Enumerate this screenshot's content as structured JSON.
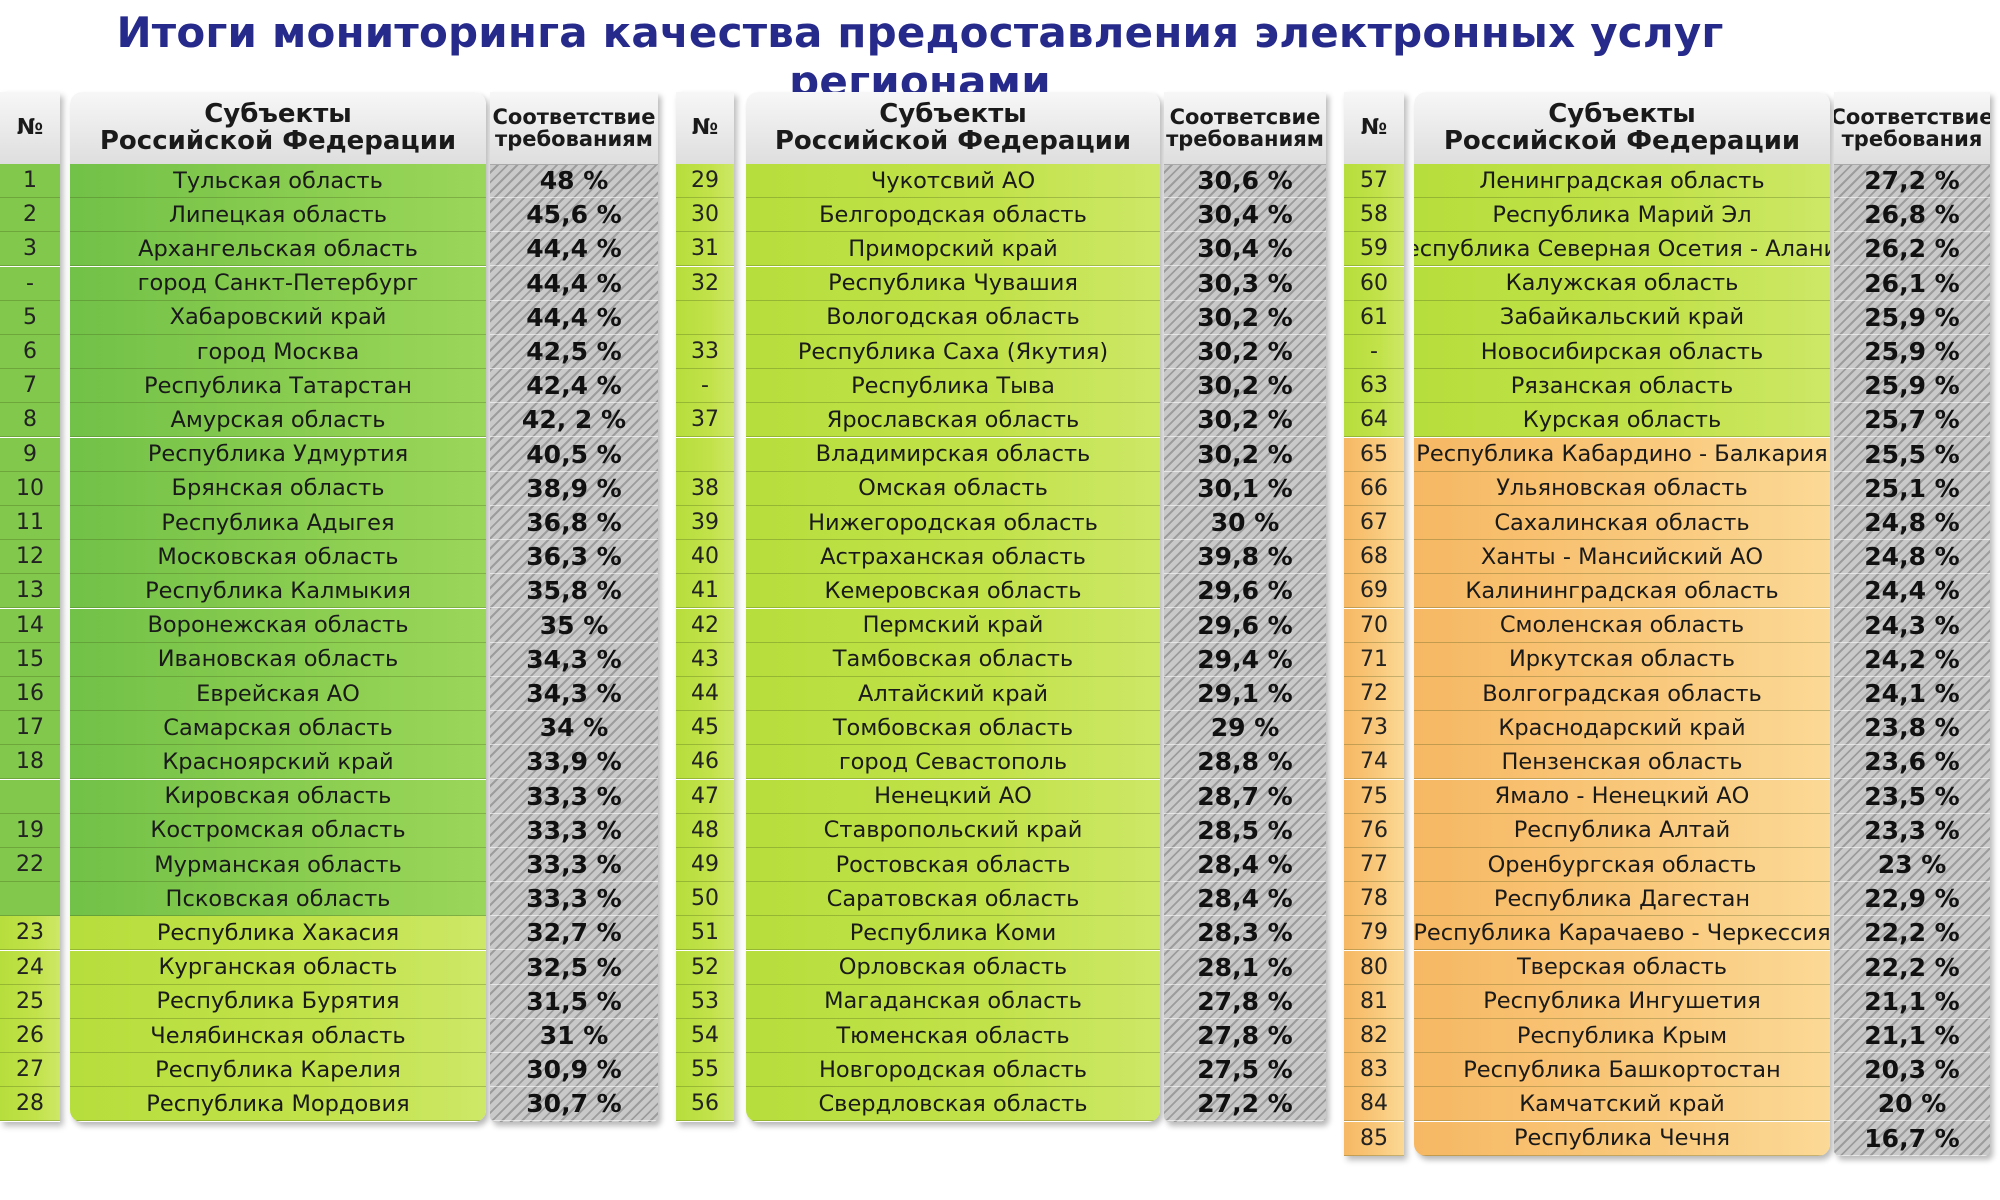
{
  "title": "Итоги мониторинга качества предоставления электронных услуг регионами",
  "headers": {
    "number": "№",
    "subject_line1": "Субъекты",
    "subject_line2": "Российской Федерации",
    "compliance_1": [
      "Соответствие",
      "требованиям"
    ],
    "compliance_2": [
      "Соответсвие",
      "требованиям"
    ],
    "compliance_3": [
      "Соответствие",
      "требования"
    ]
  },
  "columns": [
    {
      "rows": [
        {
          "num": "1",
          "name": "Тульская область",
          "pct": "48 %",
          "group": "green"
        },
        {
          "num": "2",
          "name": "Липецкая область",
          "pct": "45,6 %",
          "group": "green"
        },
        {
          "num": "3",
          "name": "Архангельская область",
          "pct": "44,4 %",
          "group": "green"
        },
        {
          "num": "-",
          "name": "город Санкт-Петербург",
          "pct": "44,4 %",
          "group": "green"
        },
        {
          "num": "5",
          "name": "Хабаровский край",
          "pct": "44,4 %",
          "group": "green"
        },
        {
          "num": "6",
          "name": "город Москва",
          "pct": "42,5 %",
          "group": "green"
        },
        {
          "num": "7",
          "name": "Республика Татарстан",
          "pct": "42,4 %",
          "group": "green"
        },
        {
          "num": "8",
          "name": "Амурская область",
          "pct": "42, 2 %",
          "group": "green"
        },
        {
          "num": "9",
          "name": "Республика Удмуртия",
          "pct": "40,5 %",
          "group": "green"
        },
        {
          "num": "10",
          "name": "Брянская область",
          "pct": "38,9 %",
          "group": "green"
        },
        {
          "num": "11",
          "name": "Республика Адыгея",
          "pct": "36,8 %",
          "group": "green"
        },
        {
          "num": "12",
          "name": "Московская область",
          "pct": "36,3 %",
          "group": "green"
        },
        {
          "num": "13",
          "name": "Республика Калмыкия",
          "pct": "35,8 %",
          "group": "green"
        },
        {
          "num": "14",
          "name": "Воронежская область",
          "pct": "35 %",
          "group": "green"
        },
        {
          "num": "15",
          "name": "Ивановская область",
          "pct": "34,3 %",
          "group": "green"
        },
        {
          "num": "16",
          "name": "Еврейская АО",
          "pct": "34,3 %",
          "group": "green"
        },
        {
          "num": "17",
          "name": "Самарская область",
          "pct": "34 %",
          "group": "green"
        },
        {
          "num": "18",
          "name": "Красноярский край",
          "pct": "33,9 %",
          "group": "green"
        },
        {
          "num": "",
          "name": "Кировская область",
          "pct": "33,3 %",
          "group": "green"
        },
        {
          "num": "19",
          "name": "Костромская область",
          "pct": "33,3 %",
          "group": "green"
        },
        {
          "num": "22",
          "name": "Мурманская область",
          "pct": "33,3 %",
          "group": "green"
        },
        {
          "num": "",
          "name": "Псковская область",
          "pct": "33,3 %",
          "group": "green"
        },
        {
          "num": "23",
          "name": "Республика Хакасия",
          "pct": "32,7 %",
          "group": "lime"
        },
        {
          "num": "24",
          "name": "Курганская область",
          "pct": "32,5 %",
          "group": "lime"
        },
        {
          "num": "25",
          "name": "Республика Бурятия",
          "pct": "31,5 %",
          "group": "lime"
        },
        {
          "num": "26",
          "name": "Челябинская область",
          "pct": "31 %",
          "group": "lime"
        },
        {
          "num": "27",
          "name": "Республика Карелия",
          "pct": "30,9 %",
          "group": "lime"
        },
        {
          "num": "28",
          "name": "Республика Мордовия",
          "pct": "30,7 %",
          "group": "lime"
        }
      ]
    },
    {
      "rows": [
        {
          "num": "29",
          "name": "Чукотсвий АО",
          "pct": "30,6 %",
          "group": "lime"
        },
        {
          "num": "30",
          "name": "Белгородская область",
          "pct": "30,4 %",
          "group": "lime"
        },
        {
          "num": "31",
          "name": "Приморский край",
          "pct": "30,4 %",
          "group": "lime"
        },
        {
          "num": "32",
          "name": "Республика Чувашия",
          "pct": "30,3 %",
          "group": "lime"
        },
        {
          "num": "",
          "name": "Вологодская область",
          "pct": "30,2 %",
          "group": "lime"
        },
        {
          "num": "33",
          "name": "Республика Саха (Якутия)",
          "pct": "30,2 %",
          "group": "lime"
        },
        {
          "num": "-",
          "name": "Республика Тыва",
          "pct": "30,2 %",
          "group": "lime"
        },
        {
          "num": "37",
          "name": "Ярославская область",
          "pct": "30,2 %",
          "group": "lime"
        },
        {
          "num": "",
          "name": "Владимирская область",
          "pct": "30,2 %",
          "group": "lime"
        },
        {
          "num": "38",
          "name": "Омская область",
          "pct": "30,1 %",
          "group": "lime"
        },
        {
          "num": "39",
          "name": "Нижегородская область",
          "pct": "30 %",
          "group": "lime"
        },
        {
          "num": "40",
          "name": "Астраханская область",
          "pct": "39,8 %",
          "group": "lime"
        },
        {
          "num": "41",
          "name": "Кемеровская область",
          "pct": "29,6 %",
          "group": "lime"
        },
        {
          "num": "42",
          "name": "Пермский край",
          "pct": "29,6 %",
          "group": "lime"
        },
        {
          "num": "43",
          "name": "Тамбовская область",
          "pct": "29,4 %",
          "group": "lime"
        },
        {
          "num": "44",
          "name": "Алтайский край",
          "pct": "29,1 %",
          "group": "lime"
        },
        {
          "num": "45",
          "name": "Томбовская область",
          "pct": "29 %",
          "group": "lime"
        },
        {
          "num": "46",
          "name": "город Севастополь",
          "pct": "28,8 %",
          "group": "lime"
        },
        {
          "num": "47",
          "name": "Ненецкий АО",
          "pct": "28,7 %",
          "group": "lime"
        },
        {
          "num": "48",
          "name": "Ставропольский край",
          "pct": "28,5 %",
          "group": "lime"
        },
        {
          "num": "49",
          "name": "Ростовская область",
          "pct": "28,4 %",
          "group": "lime"
        },
        {
          "num": "50",
          "name": "Саратовская область",
          "pct": "28,4 %",
          "group": "lime"
        },
        {
          "num": "51",
          "name": "Республика Коми",
          "pct": "28,3 %",
          "group": "lime"
        },
        {
          "num": "52",
          "name": "Орловская область",
          "pct": "28,1 %",
          "group": "lime"
        },
        {
          "num": "53",
          "name": "Магаданская область",
          "pct": "27,8 %",
          "group": "lime"
        },
        {
          "num": "54",
          "name": "Тюменская область",
          "pct": "27,8 %",
          "group": "lime"
        },
        {
          "num": "55",
          "name": "Новгородская область",
          "pct": "27,5 %",
          "group": "lime"
        },
        {
          "num": "56",
          "name": "Свердловская область",
          "pct": "27,2 %",
          "group": "lime"
        }
      ]
    },
    {
      "rows": [
        {
          "num": "57",
          "name": "Ленинградская область",
          "pct": "27,2 %",
          "group": "lime"
        },
        {
          "num": "58",
          "name": "Республика Марий Эл",
          "pct": "26,8 %",
          "group": "lime"
        },
        {
          "num": "59",
          "name": "Республика Северная Осетия - Алания",
          "pct": "26,2 %",
          "group": "lime"
        },
        {
          "num": "60",
          "name": "Калужская область",
          "pct": "26,1 %",
          "group": "lime"
        },
        {
          "num": "61",
          "name": "Забайкальский край",
          "pct": "25,9 %",
          "group": "lime"
        },
        {
          "num": "-",
          "name": "Новосибирская область",
          "pct": "25,9 %",
          "group": "lime"
        },
        {
          "num": "63",
          "name": "Рязанская область",
          "pct": "25,9 %",
          "group": "lime"
        },
        {
          "num": "64",
          "name": "Курская область",
          "pct": "25,7 %",
          "group": "lime"
        },
        {
          "num": "65",
          "name": "Республика Кабардино - Балкария",
          "pct": "25,5 %",
          "group": "orange"
        },
        {
          "num": "66",
          "name": "Ульяновская область",
          "pct": "25,1 %",
          "group": "orange"
        },
        {
          "num": "67",
          "name": "Сахалинская область",
          "pct": "24,8 %",
          "group": "orange"
        },
        {
          "num": "68",
          "name": "Ханты - Мансийский АО",
          "pct": "24,8 %",
          "group": "orange"
        },
        {
          "num": "69",
          "name": "Калининградская область",
          "pct": "24,4 %",
          "group": "orange"
        },
        {
          "num": "70",
          "name": "Смоленская область",
          "pct": "24,3 %",
          "group": "orange"
        },
        {
          "num": "71",
          "name": "Иркутская область",
          "pct": "24,2 %",
          "group": "orange"
        },
        {
          "num": "72",
          "name": "Волгоградская область",
          "pct": "24,1 %",
          "group": "orange"
        },
        {
          "num": "73",
          "name": "Краснодарский край",
          "pct": "23,8 %",
          "group": "orange"
        },
        {
          "num": "74",
          "name": "Пензенская область",
          "pct": "23,6 %",
          "group": "orange"
        },
        {
          "num": "75",
          "name": "Ямало - Ненецкий АО",
          "pct": "23,5 %",
          "group": "orange"
        },
        {
          "num": "76",
          "name": "Республика Алтай",
          "pct": "23,3 %",
          "group": "orange"
        },
        {
          "num": "77",
          "name": "Оренбургская область",
          "pct": "23 %",
          "group": "orange"
        },
        {
          "num": "78",
          "name": "Республика Дагестан",
          "pct": "22,9 %",
          "group": "orange"
        },
        {
          "num": "79",
          "name": "Республика Карачаево - Черкессия",
          "pct": "22,2 %",
          "group": "orange"
        },
        {
          "num": "80",
          "name": "Тверская область",
          "pct": "22,2 %",
          "group": "orange"
        },
        {
          "num": "81",
          "name": "Республика Ингушетия",
          "pct": "21,1 %",
          "group": "orange"
        },
        {
          "num": "82",
          "name": "Республика Крым",
          "pct": "21,1 %",
          "group": "orange"
        },
        {
          "num": "83",
          "name": "Республика Башкортостан",
          "pct": "20,3 %",
          "group": "orange"
        },
        {
          "num": "84",
          "name": "Камчатский край",
          "pct": "20 %",
          "group": "orange"
        },
        {
          "num": "85",
          "name": "Республика Чечня",
          "pct": "16,7 %",
          "group": "orange"
        }
      ]
    }
  ]
}
